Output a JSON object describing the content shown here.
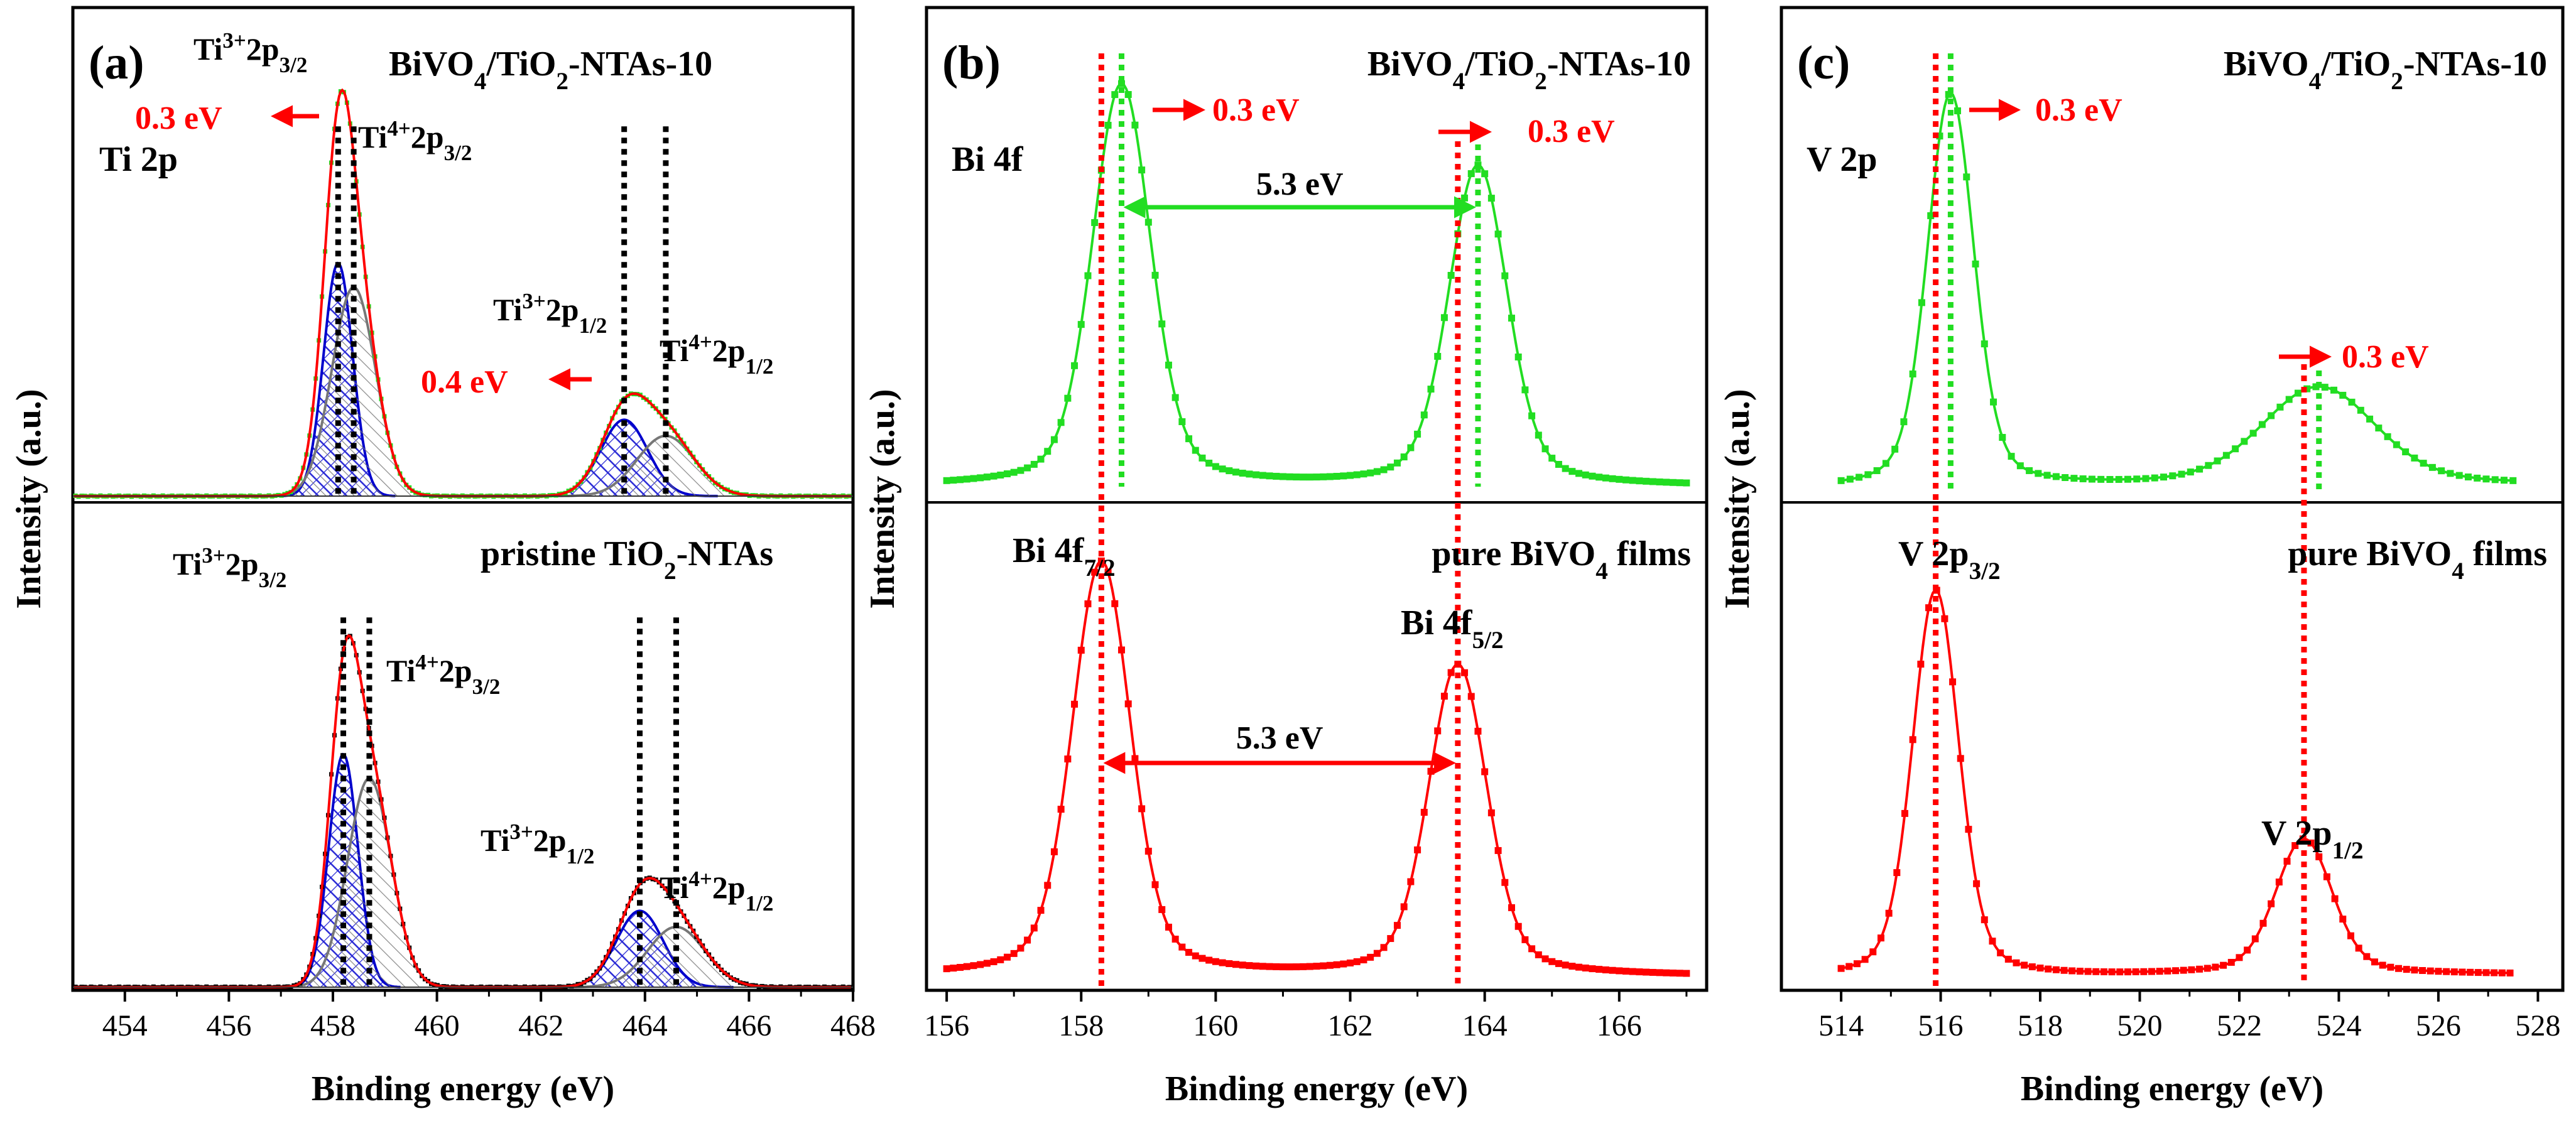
{
  "figure": {
    "panels": [
      {
        "key": "a",
        "label": "(a)",
        "region": "Ti 2p"
      },
      {
        "key": "b",
        "label": "(b)",
        "region": "Bi 4f"
      },
      {
        "key": "c",
        "label": "(c)",
        "region": "V 2p"
      }
    ],
    "top_sample": "BiVO4/TiO2-NTAs-10",
    "bottom_sample_a": "pristine TiO2-NTAs",
    "bottom_sample_bc": "pure BiVO4 films",
    "colors": {
      "top_fit": "#ff0000",
      "top_data": "#22dd22",
      "bottom": "#ff0000",
      "ti3": "#0000cc",
      "ti4": "#777777",
      "black": "#000000"
    }
  },
  "chart_data": [
    {
      "panel": "a",
      "type": "line",
      "title": "Ti 2p",
      "xlabel": "Binding energy (eV)",
      "ylabel": "Intensity (a.u.)",
      "xlim": [
        453,
        468
      ],
      "xticks": [
        "454",
        "456",
        "458",
        "460",
        "462",
        "464",
        "466",
        "468"
      ],
      "series": [
        {
          "name": "BiVO4/TiO2-NTAs-10",
          "peaks": [
            {
              "label": "Ti3+ 2p3/2",
              "x": 458.1
            },
            {
              "label": "Ti4+ 2p3/2",
              "x": 458.4
            },
            {
              "label": "Ti3+ 2p1/2",
              "x": 463.6
            },
            {
              "label": "Ti4+ 2p1/2",
              "x": 464.4
            }
          ]
        },
        {
          "name": "pristine TiO2-NTAs",
          "peaks": [
            {
              "label": "Ti3+ 2p3/2",
              "x": 458.2
            },
            {
              "label": "Ti4+ 2p3/2",
              "x": 458.7
            },
            {
              "label": "Ti3+ 2p1/2",
              "x": 463.9
            },
            {
              "label": "Ti4+ 2p1/2",
              "x": 464.6
            }
          ]
        }
      ],
      "annotations": [
        "0.3 eV",
        "0.4 eV"
      ]
    },
    {
      "panel": "b",
      "type": "line",
      "title": "Bi 4f",
      "xlabel": "Binding energy (eV)",
      "ylabel": "Intensity (a.u.)",
      "xlim": [
        155.7,
        167.3
      ],
      "xticks": [
        "156",
        "158",
        "160",
        "162",
        "164",
        "166"
      ],
      "series": [
        {
          "name": "BiVO4/TiO2-NTAs-10",
          "peaks": [
            {
              "label": "Bi 4f7/2",
              "x": 158.6
            },
            {
              "label": "Bi 4f5/2",
              "x": 163.9
            }
          ]
        },
        {
          "name": "pure BiVO4 films",
          "peaks": [
            {
              "label": "Bi 4f7/2",
              "x": 158.3
            },
            {
              "label": "Bi 4f5/2",
              "x": 163.6
            }
          ]
        }
      ],
      "annotations": [
        "0.3 eV",
        "0.3 eV",
        "5.3 eV",
        "5.3 eV"
      ]
    },
    {
      "panel": "c",
      "type": "line",
      "title": "V 2p",
      "xlabel": "Binding energy (eV)",
      "ylabel": "Intensity (a.u.)",
      "xlim": [
        512.8,
        528.5
      ],
      "xticks": [
        "514",
        "516",
        "518",
        "520",
        "522",
        "524",
        "526",
        "528"
      ],
      "series": [
        {
          "name": "BiVO4/TiO2-NTAs-10",
          "peaks": [
            {
              "label": "V 2p3/2",
              "x": 516.2
            },
            {
              "label": "V 2p1/2",
              "x": 523.6
            }
          ]
        },
        {
          "name": "pure BiVO4 films",
          "peaks": [
            {
              "label": "V 2p3/2",
              "x": 515.9
            },
            {
              "label": "V 2p1/2",
              "x": 523.3
            }
          ]
        }
      ],
      "annotations": [
        "0.3 eV",
        "0.3 eV"
      ]
    }
  ]
}
